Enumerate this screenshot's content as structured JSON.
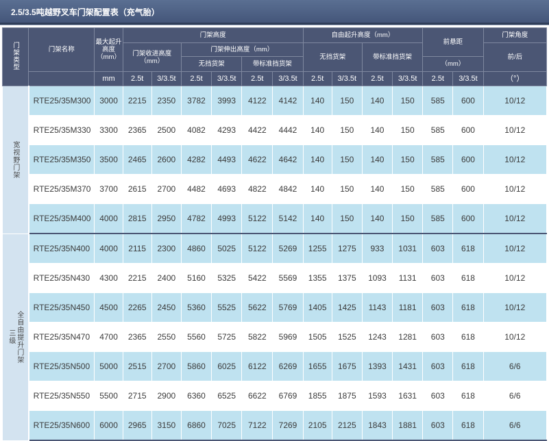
{
  "title": "2.5/3.5吨越野叉车门架配置表（充气胎）",
  "header": {
    "mast_type": "门架类型",
    "mast_name": "门架名称",
    "max_lift": "最大起升高度（mm）",
    "max_lift_unit": "mm",
    "mast_height": "门架高度",
    "retracted": "门架收进高度（mm）",
    "extended": "门架伸出高度（mm）",
    "no_backrest": "无挡货架",
    "with_backrest": "带标准挡货架",
    "free_lift": "自由起升高度（mm）",
    "free_no_backrest": "无挡货架",
    "free_with_backrest": "带标准挡货架",
    "front_overhang": "前悬距",
    "front_overhang_unit": "（mm）",
    "tilt_angle": "门架角度",
    "tilt_front_back": "前/后",
    "tilt_unit": "（°）",
    "t25": "2.5t",
    "t335": "3/3.5t"
  },
  "groups": [
    {
      "label": "宽视野门架",
      "rows": [
        {
          "name": "RTE25/35M300",
          "lift": "3000",
          "ret25": "2215",
          "ret35": "2350",
          "ext_nb25": "3782",
          "ext_nb35": "3993",
          "ext_wb25": "4122",
          "ext_wb35": "4142",
          "fl_nb25": "140",
          "fl_nb35": "150",
          "fl_wb25": "140",
          "fl_wb35": "150",
          "fo25": "585",
          "fo35": "600",
          "tilt": "10/12"
        },
        {
          "name": "RTE25/35M330",
          "lift": "3300",
          "ret25": "2365",
          "ret35": "2500",
          "ext_nb25": "4082",
          "ext_nb35": "4293",
          "ext_wb25": "4422",
          "ext_wb35": "4442",
          "fl_nb25": "140",
          "fl_nb35": "150",
          "fl_wb25": "140",
          "fl_wb35": "150",
          "fo25": "585",
          "fo35": "600",
          "tilt": "10/12"
        },
        {
          "name": "RTE25/35M350",
          "lift": "3500",
          "ret25": "2465",
          "ret35": "2600",
          "ext_nb25": "4282",
          "ext_nb35": "4493",
          "ext_wb25": "4622",
          "ext_wb35": "4642",
          "fl_nb25": "140",
          "fl_nb35": "150",
          "fl_wb25": "140",
          "fl_wb35": "150",
          "fo25": "585",
          "fo35": "600",
          "tilt": "10/12"
        },
        {
          "name": "RTE25/35M370",
          "lift": "3700",
          "ret25": "2615",
          "ret35": "2700",
          "ext_nb25": "4482",
          "ext_nb35": "4693",
          "ext_wb25": "4822",
          "ext_wb35": "4842",
          "fl_nb25": "140",
          "fl_nb35": "150",
          "fl_wb25": "140",
          "fl_wb35": "150",
          "fo25": "585",
          "fo35": "600",
          "tilt": "10/12"
        },
        {
          "name": "RTE25/35M400",
          "lift": "4000",
          "ret25": "2815",
          "ret35": "2950",
          "ext_nb25": "4782",
          "ext_nb35": "4993",
          "ext_wb25": "5122",
          "ext_wb35": "5142",
          "fl_nb25": "140",
          "fl_nb35": "150",
          "fl_wb25": "140",
          "fl_wb35": "150",
          "fo25": "585",
          "fo35": "600",
          "tilt": "10/12"
        }
      ]
    },
    {
      "label_col1": "三级",
      "label_col2": "全自由提升门架",
      "rows": [
        {
          "name": "RTE25/35N400",
          "lift": "4000",
          "ret25": "2115",
          "ret35": "2300",
          "ext_nb25": "4860",
          "ext_nb35": "5025",
          "ext_wb25": "5122",
          "ext_wb35": "5269",
          "fl_nb25": "1255",
          "fl_nb35": "1275",
          "fl_wb25": "933",
          "fl_wb35": "1031",
          "fo25": "603",
          "fo35": "618",
          "tilt": "10/12"
        },
        {
          "name": "RTE25/35N430",
          "lift": "4300",
          "ret25": "2215",
          "ret35": "2400",
          "ext_nb25": "5160",
          "ext_nb35": "5325",
          "ext_wb25": "5422",
          "ext_wb35": "5569",
          "fl_nb25": "1355",
          "fl_nb35": "1375",
          "fl_wb25": "1093",
          "fl_wb35": "1131",
          "fo25": "603",
          "fo35": "618",
          "tilt": "10/12"
        },
        {
          "name": "RTE25/35N450",
          "lift": "4500",
          "ret25": "2265",
          "ret35": "2450",
          "ext_nb25": "5360",
          "ext_nb35": "5525",
          "ext_wb25": "5622",
          "ext_wb35": "5769",
          "fl_nb25": "1405",
          "fl_nb35": "1425",
          "fl_wb25": "1143",
          "fl_wb35": "1181",
          "fo25": "603",
          "fo35": "618",
          "tilt": "10/12"
        },
        {
          "name": "RTE25/35N470",
          "lift": "4700",
          "ret25": "2365",
          "ret35": "2550",
          "ext_nb25": "5560",
          "ext_nb35": "5725",
          "ext_wb25": "5822",
          "ext_wb35": "5969",
          "fl_nb25": "1505",
          "fl_nb35": "1525",
          "fl_wb25": "1243",
          "fl_wb35": "1281",
          "fo25": "603",
          "fo35": "618",
          "tilt": "10/12"
        },
        {
          "name": "RTE25/35N500",
          "lift": "5000",
          "ret25": "2515",
          "ret35": "2700",
          "ext_nb25": "5860",
          "ext_nb35": "6025",
          "ext_wb25": "6122",
          "ext_wb35": "6269",
          "fl_nb25": "1655",
          "fl_nb35": "1675",
          "fl_wb25": "1393",
          "fl_wb35": "1431",
          "fo25": "603",
          "fo35": "618",
          "tilt": "6/6"
        },
        {
          "name": "RTE25/35N550",
          "lift": "5500",
          "ret25": "2715",
          "ret35": "2900",
          "ext_nb25": "6360",
          "ext_nb35": "6525",
          "ext_wb25": "6622",
          "ext_wb35": "6769",
          "fl_nb25": "1855",
          "fl_nb35": "1875",
          "fl_wb25": "1593",
          "fl_wb35": "1631",
          "fo25": "603",
          "fo35": "618",
          "tilt": "6/6"
        },
        {
          "name": "RTE25/35N600",
          "lift": "6000",
          "ret25": "2965",
          "ret35": "3150",
          "ext_nb25": "6860",
          "ext_nb35": "7025",
          "ext_wb25": "7122",
          "ext_wb35": "7269",
          "fl_nb25": "2105",
          "fl_nb35": "2125",
          "fl_wb25": "1843",
          "fl_wb35": "1881",
          "fo25": "603",
          "fo35": "618",
          "tilt": "6/6"
        }
      ]
    }
  ]
}
